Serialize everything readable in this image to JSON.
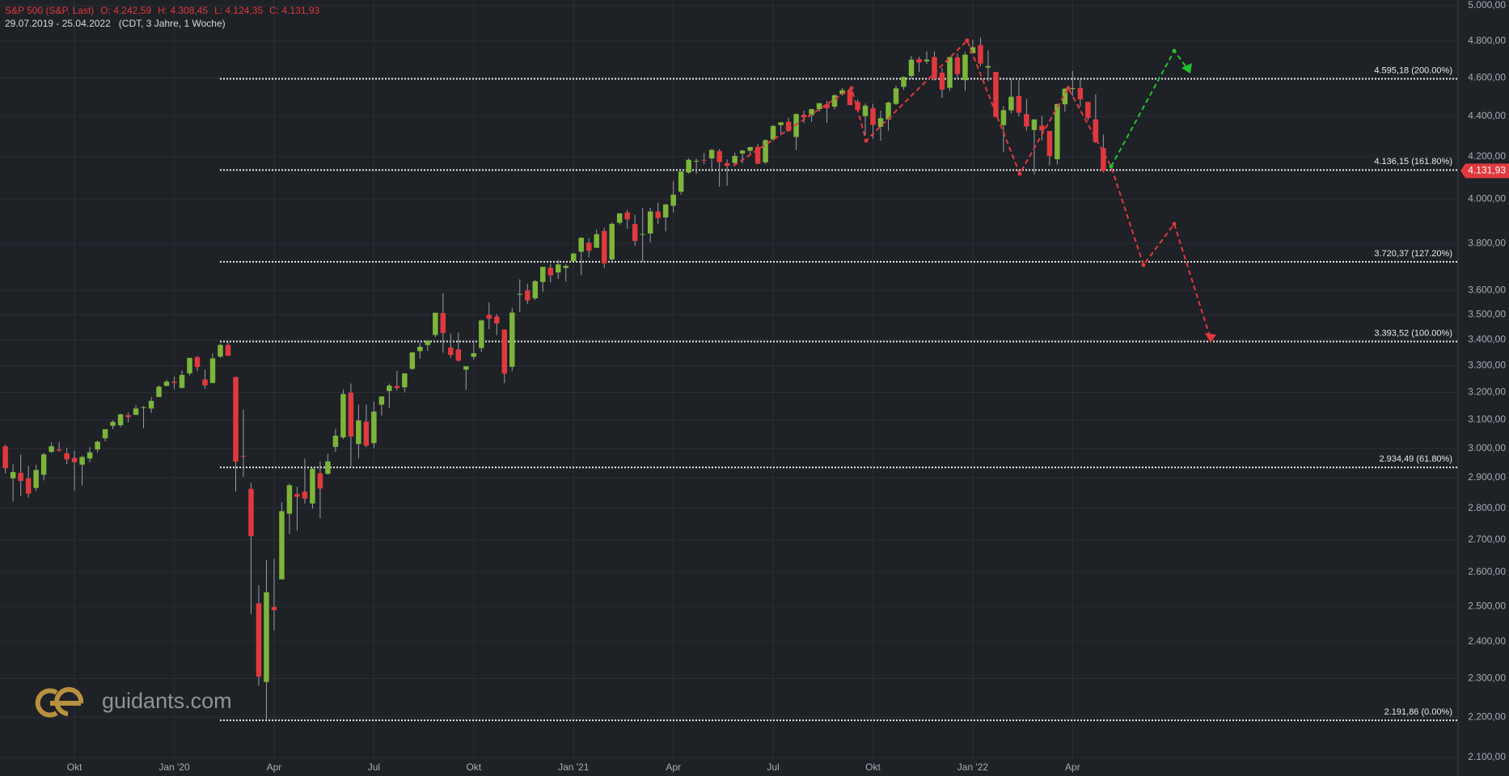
{
  "chart_data": {
    "type": "candlestick",
    "title": "S&P 500 (S&P, Last)",
    "header_values": [
      "O: 4.242,59",
      "H: 4.308,45",
      "L: 4.124,35",
      "C: 4.131,93"
    ],
    "subtitle": "29.07.2019 - 25.04.2022   (CDT, 3 Jahre, 1 Woche)",
    "watermark": "guidants.com",
    "up_color": "#7cb53a",
    "down_color": "#e0393e",
    "log_scale": true,
    "grid": true,
    "open": [
      3007,
      2898,
      2916,
      2898,
      2866,
      2910,
      2988,
      2996,
      2983,
      2967,
      2944,
      2965,
      2996,
      3035,
      3079,
      3081,
      3117,
      3118,
      3144,
      3141,
      3183,
      3224,
      3240,
      3217,
      3271,
      3333,
      3248,
      3235,
      3335,
      3380,
      3257,
      2974,
      2863,
      2509,
      2291,
      2498,
      2579,
      2782,
      2846,
      2854,
      2815,
      2915,
      2913,
      3005,
      3038,
      3199,
      3015,
      3094,
      3018,
      3155,
      3205,
      3224,
      3219,
      3288,
      3356,
      3380,
      3419,
      3507,
      3370,
      3363,
      3285,
      3334,
      3368,
      3500,
      3493,
      3441,
      3296,
      3583,
      3600,
      3567,
      3635,
      3695,
      3675,
      3694,
      3723,
      3764,
      3803,
      3781,
      3855,
      3731,
      3892,
      3939,
      3886,
      3842,
      3844,
      3943,
      3916,
      3969,
      4034,
      4124,
      4179,
      4185,
      4192,
      4228,
      4169,
      4170,
      4216,
      4229,
      4248,
      4173,
      4285,
      4356,
      4373,
      4297,
      4409,
      4406,
      4437,
      4462,
      4450,
      4514,
      4535,
      4474,
      4402,
      4442,
      4348,
      4385,
      4464,
      4553,
      4610,
      4701,
      4689,
      4712,
      4628,
      4548,
      4710,
      4588,
      4733,
      4778,
      4655,
      4632,
      4356,
      4431,
      4505,
      4412,
      4332,
      4354,
      4327,
      4188,
      4462,
      4541,
      4547,
      4474,
      4385,
      4242.59
    ],
    "high": [
      3013,
      2945,
      2979,
      2940,
      2943,
      2985,
      3021,
      3022,
      3002,
      2992,
      2975,
      3004,
      3027,
      3067,
      3098,
      3122,
      3127,
      3154,
      3150,
      3183,
      3226,
      3247,
      3259,
      3282,
      3330,
      3338,
      3285,
      3347,
      3385,
      3393,
      3259,
      3137,
      2882,
      2562,
      2637,
      2641,
      2819,
      2880,
      2870,
      2965,
      2932,
      2955,
      2981,
      3068,
      3211,
      3233,
      3155,
      3155,
      3165,
      3186,
      3233,
      3280,
      3272,
      3352,
      3388,
      3399,
      3509,
      3588,
      3425,
      3429,
      3299,
      3397,
      3480,
      3550,
      3502,
      3441,
      3529,
      3646,
      3628,
      3644,
      3699,
      3712,
      3727,
      3711,
      3760,
      3827,
      3823,
      3861,
      3870,
      3894,
      3937,
      3950,
      3928,
      3960,
      3960,
      3983,
      3978,
      4083,
      4130,
      4192,
      4191,
      4218,
      4238,
      4237,
      4187,
      4220,
      4233,
      4249,
      4262,
      4286,
      4356,
      4372,
      4393,
      4415,
      4429,
      4440,
      4468,
      4480,
      4513,
      4546,
      4536,
      4487,
      4466,
      4465,
      4429,
      4475,
      4559,
      4608,
      4718,
      4714,
      4743,
      4743,
      4652,
      4713,
      4731,
      4740,
      4808,
      4819,
      4749,
      4632,
      4453,
      4595,
      4590,
      4490,
      4385,
      4402,
      4327,
      4465,
      4546,
      4637,
      4593,
      4475,
      4513,
      4308.45
    ],
    "low": [
      2914,
      2822,
      2840,
      2834,
      2856,
      2891,
      2984,
      2989,
      2946,
      2856,
      2874,
      2952,
      2985,
      3024,
      3067,
      3074,
      3091,
      3118,
      3070,
      3125,
      3183,
      3223,
      3212,
      3214,
      3263,
      3280,
      3214,
      3235,
      3330,
      3360,
      2855,
      2902,
      2478,
      2281,
      2192,
      2431,
      2579,
      2718,
      2728,
      2815,
      2798,
      2767,
      2910,
      2988,
      3032,
      2936,
      2966,
      3004,
      3000,
      3115,
      3142,
      3207,
      3200,
      3284,
      3327,
      3357,
      3410,
      3350,
      3330,
      3317,
      3209,
      3323,
      3352,
      3442,
      3419,
      3234,
      3279,
      3511,
      3543,
      3560,
      3594,
      3633,
      3648,
      3636,
      3723,
      3663,
      3740,
      3780,
      3694,
      3725,
      3884,
      3865,
      3789,
      3723,
      3805,
      3885,
      3853,
      3937,
      4020,
      4118,
      4118,
      4164,
      4128,
      4057,
      4062,
      4156,
      4168,
      4208,
      4165,
      4165,
      4278,
      4306,
      4321,
      4233,
      4367,
      4373,
      4425,
      4367,
      4436,
      4506,
      4457,
      4427,
      4306,
      4288,
      4278,
      4329,
      4459,
      4537,
      4595,
      4631,
      4674,
      4585,
      4495,
      4532,
      4600,
      4531,
      4733,
      4662,
      4582,
      4395,
      4222,
      4414,
      4401,
      4328,
      4115,
      4279,
      4157,
      4162,
      4424,
      4505,
      4450,
      4381,
      4267,
      4124.35
    ],
    "close": [
      2932,
      2919,
      2889,
      2847,
      2926,
      2979,
      3007,
      2992,
      2962,
      2952,
      2970,
      2986,
      3023,
      3067,
      3093,
      3120,
      3110,
      3141,
      3146,
      3169,
      3221,
      3240,
      3235,
      3265,
      3330,
      3295,
      3226,
      3328,
      3380,
      3338,
      2954,
      2972,
      2711,
      2305,
      2541,
      2489,
      2790,
      2875,
      2837,
      2831,
      2930,
      2864,
      2955,
      3044,
      3194,
      3041,
      3098,
      3009,
      3130,
      3185,
      3225,
      3216,
      3271,
      3351,
      3373,
      3397,
      3508,
      3427,
      3341,
      3319,
      3298,
      3348,
      3477,
      3484,
      3465,
      3270,
      3509,
      3585,
      3558,
      3638,
      3699,
      3663,
      3709,
      3703,
      3756,
      3825,
      3768,
      3841,
      3714,
      3887,
      3934,
      3907,
      3811,
      3842,
      3943,
      3913,
      3975,
      4020,
      4129,
      4185,
      4180,
      4181,
      4233,
      4174,
      4156,
      4204,
      4230,
      4247,
      4166,
      4281,
      4352,
      4370,
      4327,
      4412,
      4395,
      4437,
      4468,
      4442,
      4509,
      4535,
      4458,
      4433,
      4455,
      4357,
      4391,
      4471,
      4545,
      4605,
      4698,
      4682,
      4698,
      4595,
      4538,
      4712,
      4620,
      4725,
      4766,
      4677,
      4663,
      4398,
      4432,
      4501,
      4419,
      4349,
      4385,
      4329,
      4204,
      4463,
      4543,
      4546,
      4488,
      4392,
      4272,
      4131.93
    ],
    "xlim": [
      -0.7,
      189.2
    ],
    "xticks": [
      {
        "value": 9,
        "label": "Okt"
      },
      {
        "value": 22,
        "label": "Jan '20"
      },
      {
        "value": 35,
        "label": "Apr"
      },
      {
        "value": 48,
        "label": "Jul"
      },
      {
        "value": 61,
        "label": "Okt"
      },
      {
        "value": 74,
        "label": "Jan '21"
      },
      {
        "value": 87,
        "label": "Apr"
      },
      {
        "value": 100,
        "label": "Jul"
      },
      {
        "value": 113,
        "label": "Okt"
      },
      {
        "value": 126,
        "label": "Jan '22"
      },
      {
        "value": 139,
        "label": "Apr"
      }
    ],
    "ylim": [
      2100,
      5000
    ],
    "yticks": [
      {
        "value": 2100,
        "label": "2.100,00"
      },
      {
        "value": 2200,
        "label": "2.200,00"
      },
      {
        "value": 2300,
        "label": "2.300,00"
      },
      {
        "value": 2400,
        "label": "2.400,00"
      },
      {
        "value": 2500,
        "label": "2.500,00"
      },
      {
        "value": 2600,
        "label": "2.600,00"
      },
      {
        "value": 2700,
        "label": "2.700,00"
      },
      {
        "value": 2800,
        "label": "2.800,00"
      },
      {
        "value": 2900,
        "label": "2.900,00"
      },
      {
        "value": 3000,
        "label": "3.000,00"
      },
      {
        "value": 3100,
        "label": "3.100,00"
      },
      {
        "value": 3200,
        "label": "3.200,00"
      },
      {
        "value": 3300,
        "label": "3.300,00"
      },
      {
        "value": 3400,
        "label": "3.400,00"
      },
      {
        "value": 3500,
        "label": "3.500,00"
      },
      {
        "value": 3600,
        "label": "3.600,00"
      },
      {
        "value": 3800,
        "label": "3.800,00"
      },
      {
        "value": 4000,
        "label": "4.000,00"
      },
      {
        "value": 4200,
        "label": "4.200,00"
      },
      {
        "value": 4400,
        "label": "4.400,00"
      },
      {
        "value": 4600,
        "label": "4.600,00"
      },
      {
        "value": 4800,
        "label": "4.800,00"
      },
      {
        "value": 5000,
        "label": "5.000,00"
      }
    ],
    "levels": [
      {
        "value": 4595.18,
        "label": "4.595,18 (200.00%)"
      },
      {
        "value": 4136.15,
        "label": "4.136,15 (161.80%)"
      },
      {
        "value": 3720.37,
        "label": "3.720,37 (127.20%)"
      },
      {
        "value": 3393.52,
        "label": "3.393,52 (100.00%)"
      },
      {
        "value": 2934.49,
        "label": "2.934,49 (61.80%)"
      },
      {
        "value": 2191.86,
        "label": "2.191,86 (0.00%)"
      }
    ],
    "last_price": {
      "value": 4131.93,
      "label": "4.131,93"
    }
  }
}
